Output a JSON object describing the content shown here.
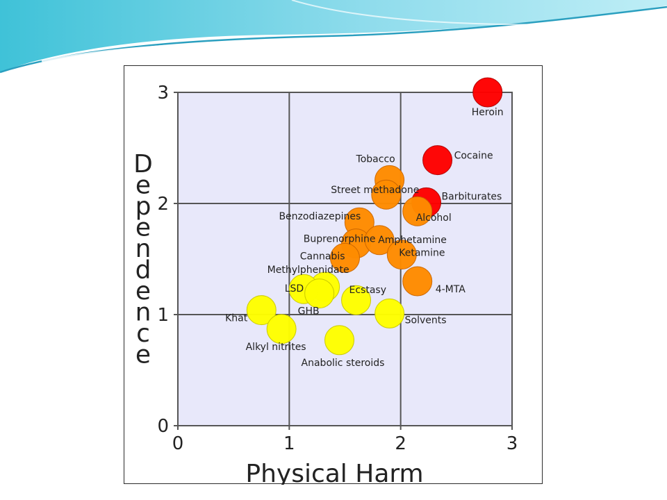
{
  "chart_data": {
    "type": "scatter",
    "xlabel": "Physical Harm",
    "ylabel": "Dependence",
    "xlim": [
      0,
      3
    ],
    "ylim": [
      0,
      3
    ],
    "xticks": [
      0,
      1,
      2,
      3
    ],
    "yticks": [
      0,
      1,
      2,
      3
    ],
    "grid": true,
    "plot_background": "#e8e8fa",
    "colors": {
      "high": "#ff0000",
      "medium": "#ff8c00",
      "low": "#ffff00"
    },
    "points": [
      {
        "name": "Heroin",
        "x": 2.78,
        "y": 3.0,
        "level": "high"
      },
      {
        "name": "Cocaine",
        "x": 2.33,
        "y": 2.39,
        "level": "high"
      },
      {
        "name": "Barbiturates",
        "x": 2.23,
        "y": 2.01,
        "level": "high"
      },
      {
        "name": "Tobacco",
        "x": 1.9,
        "y": 2.21,
        "level": "medium"
      },
      {
        "name": "Street methadone",
        "x": 1.87,
        "y": 2.08,
        "level": "medium"
      },
      {
        "name": "Alcohol",
        "x": 2.15,
        "y": 1.93,
        "level": "medium"
      },
      {
        "name": "Benzodiazepines",
        "x": 1.63,
        "y": 1.83,
        "level": "medium"
      },
      {
        "name": "Buprenorphine",
        "x": 1.6,
        "y": 1.64,
        "level": "medium"
      },
      {
        "name": "Amphetamine",
        "x": 1.81,
        "y": 1.67,
        "level": "medium"
      },
      {
        "name": "Cannabis",
        "x": 1.5,
        "y": 1.51,
        "level": "medium"
      },
      {
        "name": "Ketamine",
        "x": 2.01,
        "y": 1.54,
        "level": "medium"
      },
      {
        "name": "4-MTA",
        "x": 2.15,
        "y": 1.3,
        "level": "medium"
      },
      {
        "name": "Methylphenidate",
        "x": 1.32,
        "y": 1.25,
        "level": "low"
      },
      {
        "name": "LSD",
        "x": 1.13,
        "y": 1.23,
        "level": "low"
      },
      {
        "name": "GHB",
        "x": 1.27,
        "y": 1.19,
        "level": "low"
      },
      {
        "name": "Ecstasy",
        "x": 1.6,
        "y": 1.13,
        "level": "low"
      },
      {
        "name": "Khat",
        "x": 0.75,
        "y": 1.04,
        "level": "low"
      },
      {
        "name": "Solvents",
        "x": 1.9,
        "y": 1.01,
        "level": "low"
      },
      {
        "name": "Alkyl nitrites",
        "x": 0.93,
        "y": 0.87,
        "level": "low"
      },
      {
        "name": "Anabolic steroids",
        "x": 1.45,
        "y": 0.77,
        "level": "low"
      }
    ]
  }
}
